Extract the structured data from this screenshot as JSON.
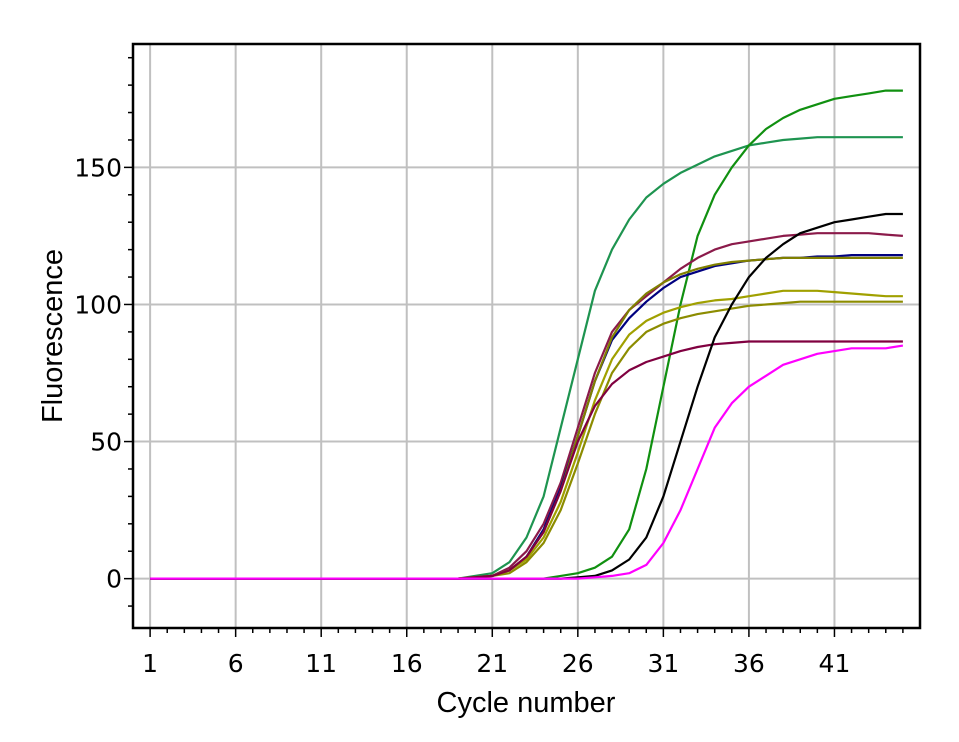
{
  "chart_data": {
    "type": "line",
    "title": "",
    "xlabel": "Cycle number",
    "ylabel": "Fluorescence",
    "xlim": [
      0,
      46
    ],
    "ylim": [
      -18,
      195
    ],
    "x_ticks": [
      1,
      6,
      11,
      16,
      21,
      26,
      31,
      36,
      41
    ],
    "y_ticks": [
      0,
      50,
      100,
      150
    ],
    "grid": true,
    "legend": "none",
    "series": [
      {
        "color": "#1e9450",
        "x": [
          1,
          19,
          21,
          22,
          23,
          24,
          25,
          26,
          27,
          28,
          29,
          30,
          31,
          32,
          33,
          34,
          35,
          36,
          37,
          38,
          39,
          40,
          41,
          42,
          43,
          44,
          45
        ],
        "y": [
          0,
          0,
          2,
          6,
          15,
          30,
          55,
          80,
          105,
          120,
          131,
          139,
          144,
          148,
          151,
          154,
          156,
          158,
          159,
          160,
          160.5,
          161,
          161,
          161,
          161,
          161,
          161
        ]
      },
      {
        "color": "#109010",
        "x": [
          1,
          24,
          25,
          26,
          27,
          28,
          29,
          30,
          31,
          32,
          33,
          34,
          35,
          36,
          37,
          38,
          39,
          40,
          41,
          42,
          43,
          44,
          45
        ],
        "y": [
          0,
          0,
          1,
          2,
          4,
          8,
          18,
          40,
          70,
          100,
          125,
          140,
          150,
          158,
          164,
          168,
          171,
          173,
          175,
          176,
          177,
          178,
          178
        ]
      },
      {
        "color": "#8b1a4a",
        "x": [
          1,
          19,
          21,
          22,
          23,
          24,
          25,
          26,
          27,
          28,
          29,
          30,
          31,
          32,
          33,
          34,
          35,
          36,
          37,
          38,
          39,
          40,
          41,
          42,
          43,
          44,
          45
        ],
        "y": [
          0,
          0,
          1,
          4,
          10,
          20,
          35,
          55,
          75,
          90,
          98,
          103,
          108,
          113,
          117,
          120,
          122,
          123,
          124,
          125,
          125.5,
          126,
          126,
          126,
          126,
          125.5,
          125
        ]
      },
      {
        "color": "#000080",
        "x": [
          1,
          19,
          21,
          22,
          23,
          24,
          25,
          26,
          27,
          28,
          29,
          30,
          31,
          32,
          33,
          34,
          35,
          36,
          37,
          38,
          39,
          40,
          41,
          42,
          43,
          44,
          45
        ],
        "y": [
          0,
          0,
          1,
          3,
          8,
          18,
          33,
          52,
          72,
          87,
          95,
          101,
          106,
          110,
          112,
          114,
          115,
          116,
          116.5,
          117,
          117,
          117.5,
          117.5,
          118,
          118,
          118,
          118
        ]
      },
      {
        "color": "#808000",
        "x": [
          1,
          19,
          21,
          22,
          23,
          24,
          25,
          26,
          27,
          28,
          29,
          30,
          31,
          32,
          33,
          34,
          35,
          36,
          37,
          38,
          39,
          40,
          41,
          42,
          43,
          44,
          45
        ],
        "y": [
          0,
          0,
          1,
          3,
          8,
          17,
          32,
          52,
          72,
          88,
          98,
          104,
          108,
          111,
          113,
          114.5,
          115.5,
          116,
          116.5,
          117,
          117,
          117,
          117,
          117,
          117,
          117,
          117
        ]
      },
      {
        "color": "#a0a000",
        "x": [
          1,
          19,
          21,
          22,
          23,
          24,
          25,
          26,
          27,
          28,
          29,
          30,
          31,
          32,
          33,
          34,
          35,
          36,
          37,
          38,
          39,
          40,
          41,
          42,
          43,
          44,
          45
        ],
        "y": [
          0,
          0,
          1,
          3,
          7,
          15,
          28,
          46,
          65,
          80,
          89,
          94,
          97,
          99,
          100.5,
          101.5,
          102,
          103,
          104,
          105,
          105,
          105,
          104.5,
          104,
          103.5,
          103,
          103
        ]
      },
      {
        "color": "#8c8c00",
        "x": [
          1,
          19,
          21,
          22,
          23,
          24,
          25,
          26,
          27,
          28,
          29,
          30,
          31,
          32,
          33,
          34,
          35,
          36,
          37,
          38,
          39,
          40,
          41,
          42,
          43,
          44,
          45
        ],
        "y": [
          0,
          0,
          1,
          2,
          6,
          13,
          25,
          42,
          60,
          75,
          84,
          90,
          93,
          95,
          96.5,
          97.5,
          98.5,
          99.5,
          100,
          100.5,
          101,
          101,
          101,
          101,
          101,
          101,
          101
        ]
      },
      {
        "color": "#800040",
        "x": [
          1,
          19,
          21,
          22,
          23,
          24,
          25,
          26,
          27,
          28,
          29,
          30,
          31,
          32,
          33,
          34,
          35,
          36,
          37,
          38,
          39,
          40,
          41,
          42,
          43,
          44,
          45
        ],
        "y": [
          0,
          0,
          1,
          3,
          8,
          17,
          32,
          50,
          63,
          71,
          76,
          79,
          81,
          83,
          84.5,
          85.5,
          86,
          86.5,
          86.5,
          86.5,
          86.5,
          86.5,
          86.5,
          86.5,
          86.5,
          86.5,
          86.5
        ]
      },
      {
        "color": "#000000",
        "x": [
          1,
          25,
          26,
          27,
          28,
          29,
          30,
          31,
          32,
          33,
          34,
          35,
          36,
          37,
          38,
          39,
          40,
          41,
          42,
          43,
          44,
          45
        ],
        "y": [
          0,
          0,
          0.5,
          1,
          3,
          7,
          15,
          30,
          50,
          70,
          88,
          100,
          110,
          117,
          122,
          126,
          128,
          130,
          131,
          132,
          133,
          133
        ]
      },
      {
        "color": "#ff00ff",
        "x": [
          1,
          25,
          26,
          27,
          28,
          29,
          30,
          31,
          32,
          33,
          34,
          35,
          36,
          37,
          38,
          39,
          40,
          41,
          42,
          43,
          44,
          45
        ],
        "y": [
          0,
          0,
          0,
          0.5,
          1,
          2,
          5,
          13,
          25,
          40,
          55,
          64,
          70,
          74,
          78,
          80,
          82,
          83,
          84,
          84,
          84,
          85
        ]
      }
    ]
  }
}
